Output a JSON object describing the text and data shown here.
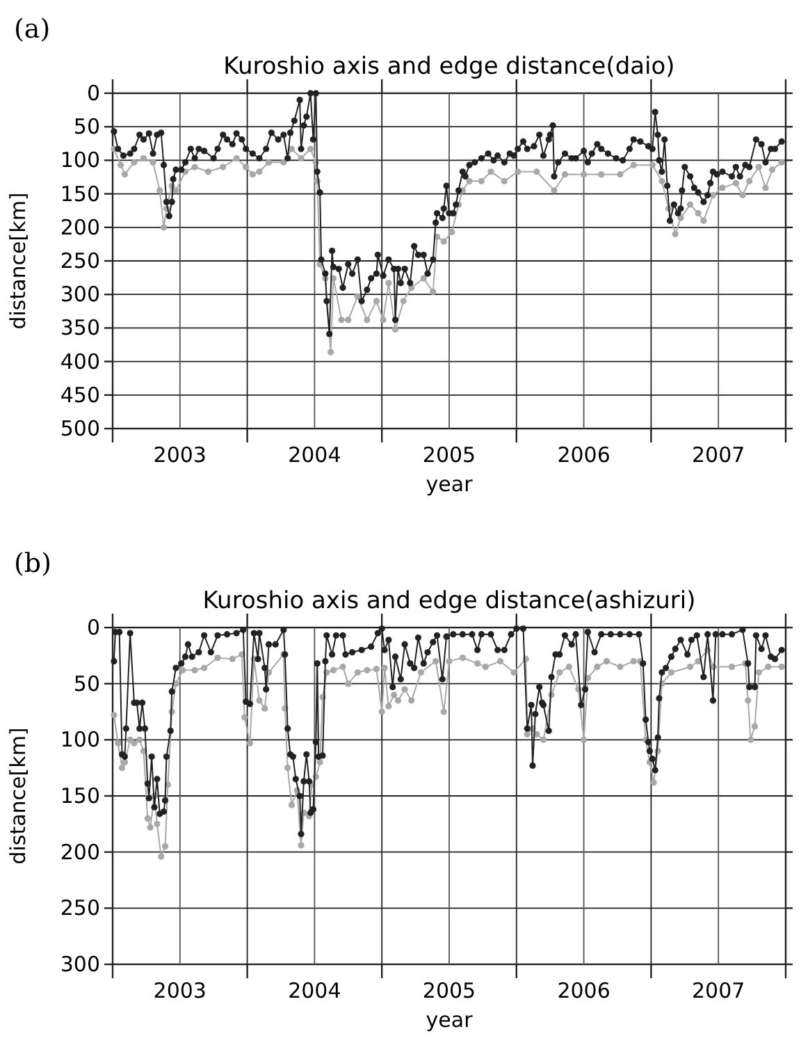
{
  "chart_data": [
    {
      "type": "line",
      "title": "Kuroshio axis and edge distance(daio)",
      "xlabel": "year",
      "ylabel": "distance[km]",
      "annotations": [
        "(a)"
      ],
      "xlim": [
        2003,
        2008
      ],
      "xticks": [
        {
          "value": 2003,
          "label": null
        },
        {
          "value": 2003.5,
          "label": "2003"
        },
        {
          "value": 2004,
          "label": null
        },
        {
          "value": 2004.5,
          "label": "2004"
        },
        {
          "value": 2005,
          "label": null
        },
        {
          "value": 2005.5,
          "label": "2005"
        },
        {
          "value": 2006,
          "label": null
        },
        {
          "value": 2006.5,
          "label": "2006"
        },
        {
          "value": 2007,
          "label": null
        },
        {
          "value": 2007.5,
          "label": "2007"
        },
        {
          "value": 2008,
          "label": null
        }
      ],
      "ylim": [
        500,
        0
      ],
      "yticks": [
        0,
        50,
        100,
        150,
        200,
        250,
        300,
        350,
        400,
        450,
        500
      ],
      "grid": true,
      "marker": "circle",
      "line_style": "solid",
      "series": [
        {
          "color": "#a8a8a8",
          "x": [
            2003.01,
            2003.06,
            2003.09,
            2003.16,
            2003.23,
            2003.3,
            2003.35,
            2003.38,
            2003.4,
            2003.44,
            2003.47,
            2003.54,
            2003.61,
            2003.71,
            2003.82,
            2003.92,
            2003.99,
            2004.04,
            2004.09,
            2004.16,
            2004.27,
            2004.33,
            2004.4,
            2004.47,
            2004.51,
            2004.52,
            2004.54,
            2004.58,
            2004.62,
            2004.64,
            2004.7,
            2004.75,
            2004.82,
            2004.89,
            2004.96,
            2005.01,
            2005.05,
            2005.1,
            2005.16,
            2005.22,
            2005.31,
            2005.38,
            2005.41,
            2005.46,
            2005.52,
            2005.57,
            2005.6,
            2005.65,
            2005.74,
            2005.81,
            2005.91,
            2006.01,
            2006.15,
            2006.28,
            2006.36,
            2006.5,
            2006.63,
            2006.77,
            2006.87,
            2007.01,
            2007.08,
            2007.13,
            2007.18,
            2007.22,
            2007.29,
            2007.35,
            2007.39,
            2007.46,
            2007.53,
            2007.63,
            2007.68,
            2007.73,
            2007.8,
            2007.85,
            2007.9,
            2007.97
          ],
          "values": [
            83,
            107,
            121,
            103,
            97,
            103,
            145,
            200,
            172,
            138,
            145,
            117,
            110,
            117,
            110,
            97,
            110,
            121,
            117,
            103,
            103,
            83,
            97,
            83,
            103,
            131,
            255,
            276,
            386,
            276,
            338,
            338,
            303,
            338,
            310,
            338,
            283,
            352,
            310,
            290,
            276,
            296,
            214,
            221,
            207,
            166,
            145,
            131,
            131,
            117,
            131,
            117,
            117,
            145,
            121,
            121,
            121,
            121,
            107,
            107,
            131,
            172,
            210,
            186,
            166,
            179,
            190,
            152,
            141,
            134,
            152,
            131,
            110,
            141,
            114,
            103
          ]
        },
        {
          "color": "#222222",
          "x": [
            2003.01,
            2003.04,
            2003.08,
            2003.13,
            2003.16,
            2003.2,
            2003.23,
            2003.27,
            2003.3,
            2003.33,
            2003.36,
            2003.38,
            2003.4,
            2003.42,
            2003.44,
            2003.45,
            2003.47,
            2003.51,
            2003.54,
            2003.58,
            2003.61,
            2003.64,
            2003.68,
            2003.75,
            2003.78,
            2003.82,
            2003.85,
            2003.89,
            2003.92,
            2003.96,
            2003.99,
            2004.04,
            2004.09,
            2004.14,
            2004.18,
            2004.23,
            2004.27,
            2004.3,
            2004.32,
            2004.35,
            2004.39,
            2004.4,
            2004.42,
            2004.44,
            2004.47,
            2004.49,
            2004.51,
            2004.52,
            2004.54,
            2004.55,
            2004.58,
            2004.59,
            2004.61,
            2004.63,
            2004.64,
            2004.68,
            2004.71,
            2004.75,
            2004.78,
            2004.82,
            2004.85,
            2004.89,
            2004.92,
            2004.96,
            2004.97,
            2005.01,
            2005.05,
            2005.09,
            2005.1,
            2005.12,
            2005.14,
            2005.17,
            2005.21,
            2005.24,
            2005.27,
            2005.31,
            2005.34,
            2005.38,
            2005.4,
            2005.41,
            2005.45,
            2005.46,
            2005.48,
            2005.5,
            2005.53,
            2005.55,
            2005.57,
            2005.6,
            2005.62,
            2005.65,
            2005.69,
            2005.74,
            2005.79,
            2005.83,
            2005.86,
            2005.91,
            2005.95,
            2005.98,
            2006.01,
            2006.05,
            2006.08,
            2006.13,
            2006.17,
            2006.2,
            2006.24,
            2006.25,
            2006.27,
            2006.28,
            2006.31,
            2006.36,
            2006.41,
            2006.44,
            2006.5,
            2006.53,
            2006.56,
            2006.6,
            2006.63,
            2006.68,
            2006.74,
            2006.79,
            2006.84,
            2006.87,
            2006.92,
            2006.98,
            2007.01,
            2007.03,
            2007.05,
            2007.06,
            2007.08,
            2007.1,
            2007.12,
            2007.14,
            2007.17,
            2007.2,
            2007.22,
            2007.23,
            2007.25,
            2007.29,
            2007.32,
            2007.35,
            2007.39,
            2007.42,
            2007.44,
            2007.46,
            2007.49,
            2007.53,
            2007.6,
            2007.63,
            2007.66,
            2007.7,
            2007.73,
            2007.78,
            2007.82,
            2007.85,
            2007.89,
            2007.92,
            2007.97
          ],
          "values": [
            57,
            83,
            93,
            90,
            83,
            62,
            69,
            60,
            90,
            62,
            59,
            107,
            162,
            183,
            162,
            128,
            114,
            114,
            103,
            83,
            97,
            83,
            86,
            97,
            83,
            62,
            69,
            76,
            60,
            69,
            83,
            90,
            97,
            83,
            59,
            69,
            62,
            97,
            59,
            41,
            10,
            83,
            48,
            35,
            0,
            69,
            0,
            117,
            148,
            248,
            269,
            310,
            359,
            235,
            259,
            262,
            290,
            255,
            269,
            248,
            310,
            293,
            276,
            269,
            241,
            272,
            248,
            262,
            338,
            262,
            283,
            262,
            283,
            228,
            241,
            241,
            269,
            248,
            193,
            179,
            186,
            172,
            138,
            179,
            179,
            166,
            145,
            117,
            124,
            107,
            103,
            97,
            90,
            100,
            93,
            103,
            90,
            93,
            83,
            72,
            83,
            79,
            62,
            93,
            69,
            62,
            48,
            124,
            103,
            90,
            97,
            97,
            86,
            103,
            90,
            76,
            83,
            90,
            97,
            100,
            83,
            69,
            72,
            79,
            83,
            28,
            62,
            100,
            117,
            69,
            138,
            190,
            166,
            179,
            172,
            145,
            110,
            124,
            141,
            148,
            162,
            152,
            134,
            117,
            121,
            117,
            124,
            110,
            124,
            107,
            110,
            69,
            76,
            103,
            83,
            83,
            72
          ]
        }
      ]
    },
    {
      "type": "line",
      "title": "Kuroshio axis and edge distance(ashizuri)",
      "xlabel": "year",
      "ylabel": "distance[km]",
      "annotations": [
        "(b)"
      ],
      "xlim": [
        2003,
        2008
      ],
      "xticks": [
        {
          "value": 2003,
          "label": null
        },
        {
          "value": 2003.5,
          "label": "2003"
        },
        {
          "value": 2004,
          "label": null
        },
        {
          "value": 2004.5,
          "label": "2004"
        },
        {
          "value": 2005,
          "label": null
        },
        {
          "value": 2005.5,
          "label": "2005"
        },
        {
          "value": 2006,
          "label": null
        },
        {
          "value": 2006.5,
          "label": "2006"
        },
        {
          "value": 2007,
          "label": null
        },
        {
          "value": 2007.5,
          "label": "2007"
        },
        {
          "value": 2008,
          "label": null
        }
      ],
      "ylim": [
        300,
        0
      ],
      "yticks": [
        0,
        50,
        100,
        150,
        200,
        250,
        300
      ],
      "grid": true,
      "marker": "circle",
      "line_style": "solid",
      "series": [
        {
          "color": "#a8a8a8",
          "x": [
            2003.01,
            2003.04,
            2003.07,
            2003.09,
            2003.13,
            2003.16,
            2003.2,
            2003.23,
            2003.26,
            2003.28,
            2003.31,
            2003.33,
            2003.36,
            2003.39,
            2003.41,
            2003.44,
            2003.47,
            2003.52,
            2003.61,
            2003.68,
            2003.78,
            2003.89,
            2003.96,
            2003.98,
            2004.02,
            2004.05,
            2004.09,
            2004.13,
            2004.16,
            2004.27,
            2004.28,
            2004.3,
            2004.33,
            2004.37,
            2004.4,
            2004.42,
            2004.46,
            2004.48,
            2004.51,
            2004.54,
            2004.56,
            2004.59,
            2004.64,
            2004.71,
            2004.75,
            2004.82,
            2004.89,
            2004.96,
            2005.0,
            2005.02,
            2005.05,
            2005.09,
            2005.12,
            2005.17,
            2005.22,
            2005.29,
            2005.4,
            2005.46,
            2005.5,
            2005.6,
            2005.71,
            2005.77,
            2005.88,
            2005.98,
            2006.07,
            2006.08,
            2006.12,
            2006.15,
            2006.2,
            2006.26,
            2006.32,
            2006.39,
            2006.46,
            2006.5,
            2006.53,
            2006.6,
            2006.67,
            2006.77,
            2006.87,
            2006.92,
            2006.96,
            2006.99,
            2007.02,
            2007.05,
            2007.08,
            2007.15,
            2007.29,
            2007.35,
            2007.42,
            2007.46,
            2007.6,
            2007.7,
            2007.72,
            2007.74,
            2007.77,
            2007.8,
            2007.87,
            2007.97
          ],
          "values": [
            78,
            103,
            125,
            120,
            100,
            103,
            100,
            110,
            170,
            178,
            150,
            175,
            204,
            195,
            140,
            75,
            50,
            38,
            38,
            36,
            27,
            28,
            24,
            80,
            103,
            28,
            65,
            72,
            40,
            24,
            72,
            125,
            158,
            145,
            194,
            165,
            168,
            140,
            133,
            120,
            62,
            40,
            38,
            35,
            50,
            40,
            38,
            37,
            75,
            36,
            70,
            60,
            65,
            55,
            65,
            40,
            30,
            75,
            30,
            27,
            32,
            35,
            30,
            40,
            28,
            95,
            90,
            95,
            100,
            60,
            40,
            35,
            55,
            100,
            45,
            35,
            30,
            35,
            30,
            30,
            100,
            120,
            138,
            110,
            50,
            40,
            35,
            30,
            20,
            35,
            35,
            32,
            65,
            100,
            88,
            40,
            35,
            35
          ]
        },
        {
          "color": "#222222",
          "x": [
            2003.01,
            2003.02,
            2003.05,
            2003.07,
            2003.09,
            2003.1,
            2003.13,
            2003.16,
            2003.18,
            2003.2,
            2003.22,
            2003.24,
            2003.26,
            2003.27,
            2003.29,
            2003.31,
            2003.33,
            2003.35,
            2003.38,
            2003.39,
            2003.4,
            2003.43,
            2003.44,
            2003.47,
            2003.51,
            2003.54,
            2003.56,
            2003.59,
            2003.64,
            2003.68,
            2003.73,
            2003.78,
            2003.85,
            2003.92,
            2003.97,
            2003.99,
            2004.02,
            2004.05,
            2004.08,
            2004.09,
            2004.13,
            2004.14,
            2004.16,
            2004.21,
            2004.27,
            2004.28,
            2004.3,
            2004.32,
            2004.34,
            2004.36,
            2004.39,
            2004.4,
            2004.42,
            2004.44,
            2004.46,
            2004.47,
            2004.49,
            2004.51,
            2004.52,
            2004.53,
            2004.56,
            2004.58,
            2004.59,
            2004.63,
            2004.66,
            2004.71,
            2004.73,
            2004.78,
            2004.85,
            2004.92,
            2004.97,
            2005.0,
            2005.02,
            2005.05,
            2005.08,
            2005.1,
            2005.14,
            2005.17,
            2005.21,
            2005.24,
            2005.27,
            2005.31,
            2005.34,
            2005.38,
            2005.41,
            2005.45,
            2005.48,
            2005.53,
            2005.6,
            2005.67,
            2005.71,
            2005.74,
            2005.81,
            2005.86,
            2005.91,
            2005.96,
            2006.0,
            2006.05,
            2006.08,
            2006.11,
            2006.12,
            2006.14,
            2006.17,
            2006.19,
            2006.2,
            2006.24,
            2006.26,
            2006.29,
            2006.32,
            2006.36,
            2006.41,
            2006.44,
            2006.48,
            2006.51,
            2006.53,
            2006.58,
            2006.63,
            2006.7,
            2006.77,
            2006.84,
            2006.91,
            2006.94,
            2006.96,
            2006.98,
            2006.99,
            2007.01,
            2007.03,
            2007.05,
            2007.06,
            2007.08,
            2007.11,
            2007.15,
            2007.18,
            2007.22,
            2007.27,
            2007.3,
            2007.34,
            2007.39,
            2007.42,
            2007.46,
            2007.48,
            2007.53,
            2007.6,
            2007.68,
            2007.72,
            2007.73,
            2007.77,
            2007.78,
            2007.82,
            2007.85,
            2007.89,
            2007.92,
            2007.97
          ],
          "values": [
            30,
            4,
            4,
            113,
            115,
            90,
            5,
            67,
            67,
            90,
            67,
            90,
            139,
            152,
            115,
            160,
            135,
            166,
            164,
            154,
            115,
            92,
            57,
            36,
            32,
            26,
            15,
            26,
            22,
            7,
            22,
            7,
            6,
            5,
            2,
            66,
            68,
            5,
            28,
            5,
            36,
            55,
            15,
            15,
            2,
            24,
            90,
            113,
            115,
            135,
            150,
            184,
            137,
            113,
            137,
            165,
            162,
            102,
            32,
            115,
            114,
            30,
            7,
            24,
            7,
            7,
            24,
            22,
            20,
            17,
            5,
            1,
            20,
            11,
            53,
            26,
            46,
            15,
            32,
            36,
            9,
            32,
            22,
            13,
            7,
            46,
            8,
            6,
            6,
            6,
            20,
            6,
            6,
            20,
            20,
            6,
            1,
            1,
            90,
            69,
            123,
            77,
            53,
            67,
            69,
            92,
            44,
            24,
            24,
            7,
            15,
            6,
            69,
            55,
            4,
            22,
            6,
            6,
            6,
            6,
            6,
            32,
            82,
            102,
            110,
            117,
            127,
            98,
            63,
            40,
            36,
            26,
            19,
            11,
            24,
            11,
            7,
            44,
            6,
            65,
            6,
            6,
            6,
            2,
            32,
            53,
            53,
            7,
            19,
            7,
            26,
            28,
            20
          ]
        }
      ]
    }
  ]
}
